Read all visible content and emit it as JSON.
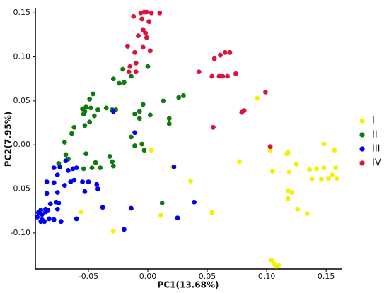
{
  "chart_data": {
    "type": "scatter",
    "xlabel": "PC1(13.68%)",
    "ylabel": "PC2(7.95%)",
    "xlim": [
      -0.0946,
      0.163
    ],
    "ylim": [
      -0.141,
      0.155
    ],
    "xticks": [
      -0.05,
      {
        "value": 0,
        "label": "0.00"
      },
      0.05,
      {
        "value": 0.1,
        "label": "0.10"
      },
      0.15
    ],
    "yticks": [
      {
        "value": -0.1,
        "label": "-0.10"
      },
      -0.05,
      {
        "value": 0,
        "label": "0.00"
      },
      0.05,
      {
        "value": 0.1,
        "label": "0.10"
      },
      0.15
    ],
    "legend": "right",
    "series": [
      {
        "name": "I",
        "color": "#f2f200",
        "x": [
          0.092,
          0.103,
          0.117,
          0.118,
          0.148,
          0.157,
          0.158,
          0.136,
          0.142,
          0.148,
          0.152,
          0.155,
          0.159,
          0.146,
          0.138,
          0.105,
          0.119,
          0.118,
          0.121,
          0.118,
          0.126,
          0.134,
          0.104,
          0.106,
          0.108,
          0.11,
          0.036,
          0.077,
          0.021,
          0.054,
          0.011,
          -0.029,
          -0.056,
          0.003,
          0.125
        ],
        "y": [
          0.053,
          -0.006,
          -0.01,
          -0.009,
          0.001,
          -0.006,
          -0.026,
          -0.028,
          -0.027,
          -0.026,
          -0.038,
          -0.034,
          -0.038,
          -0.039,
          -0.039,
          -0.03,
          -0.031,
          -0.052,
          -0.054,
          -0.061,
          -0.073,
          -0.078,
          -0.131,
          -0.135,
          -0.138,
          -0.137,
          -0.041,
          -0.019,
          -0.025,
          -0.077,
          -0.08,
          -0.098,
          -0.076,
          -0.006,
          -0.022
        ]
      },
      {
        "name": "II",
        "color": "#0f7a0f",
        "x": [
          -0.014,
          -0.021,
          -0.029,
          -0.024,
          -0.02,
          0.0,
          0.026,
          0.03,
          0.013,
          -0.046,
          -0.049,
          -0.052,
          -0.055,
          -0.053,
          -0.054,
          -0.048,
          -0.042,
          -0.035,
          -0.03,
          -0.045,
          -0.049,
          -0.053,
          -0.062,
          -0.064,
          -0.07,
          -0.069,
          -0.067,
          -0.075,
          -0.052,
          -0.044,
          -0.04,
          -0.054,
          -0.047,
          -0.032,
          -0.03,
          -0.029,
          -0.007,
          -0.011,
          -0.007,
          0.002,
          -0.004,
          -0.014,
          -0.011,
          -0.005,
          -0.003,
          0.018,
          0.018,
          0.012,
          -0.027
        ],
        "y": [
          0.078,
          0.086,
          0.075,
          0.07,
          0.071,
          0.089,
          0.054,
          0.056,
          0.05,
          0.058,
          0.052,
          0.043,
          0.041,
          0.038,
          0.035,
          0.042,
          0.04,
          0.042,
          0.04,
          0.033,
          0.026,
          0.022,
          0.02,
          0.013,
          0.003,
          -0.011,
          -0.016,
          -0.021,
          -0.01,
          -0.02,
          -0.026,
          -0.027,
          -0.026,
          -0.013,
          -0.019,
          -0.024,
          0.03,
          0.035,
          0.038,
          0.034,
          0.046,
          0.009,
          -0.001,
          0.001,
          -0.006,
          0.03,
          0.024,
          -0.066,
          0.04
        ]
      },
      {
        "name": "III",
        "color": "#0000f0",
        "x": [
          -0.011,
          -0.029,
          0.022,
          0.039,
          0.025,
          -0.02,
          -0.014,
          -0.038,
          -0.042,
          -0.043,
          -0.053,
          -0.05,
          -0.055,
          -0.062,
          -0.065,
          -0.07,
          -0.063,
          -0.06,
          -0.067,
          -0.069,
          -0.074,
          -0.079,
          -0.076,
          -0.079,
          -0.076,
          -0.085,
          -0.085,
          -0.082,
          -0.077,
          -0.076,
          -0.079,
          -0.083,
          -0.09,
          -0.092,
          -0.089,
          -0.086,
          -0.084,
          -0.09,
          -0.087,
          -0.093,
          -0.089,
          -0.086,
          -0.06,
          -0.073,
          -0.075
        ],
        "y": [
          0.014,
          0.038,
          -0.025,
          -0.065,
          -0.083,
          -0.096,
          -0.072,
          -0.071,
          -0.05,
          -0.045,
          -0.053,
          -0.042,
          -0.042,
          -0.04,
          -0.042,
          -0.046,
          -0.027,
          -0.026,
          -0.029,
          -0.018,
          -0.025,
          -0.026,
          -0.034,
          -0.043,
          -0.054,
          -0.042,
          -0.055,
          -0.067,
          -0.065,
          -0.073,
          -0.085,
          -0.084,
          -0.074,
          -0.077,
          -0.079,
          -0.076,
          -0.074,
          -0.087,
          -0.087,
          -0.082,
          -0.085,
          -0.073,
          -0.084,
          -0.087,
          -0.066
        ]
      },
      {
        "name": "IV",
        "color": "#dc143c",
        "x": [
          -0.012,
          -0.006,
          -0.003,
          -0.001,
          0.003,
          0.01,
          -0.005,
          0.001,
          -0.004,
          -0.002,
          -0.008,
          -0.001,
          -0.004,
          0.002,
          -0.017,
          -0.011,
          -0.01,
          -0.015,
          -0.016,
          -0.01,
          0.056,
          0.061,
          0.065,
          0.069,
          0.043,
          0.054,
          0.06,
          0.063,
          0.067,
          0.074,
          0.079,
          0.081,
          0.099,
          0.055,
          0.103
        ],
        "y": [
          0.146,
          0.15,
          0.151,
          0.151,
          0.15,
          0.15,
          0.143,
          0.14,
          0.131,
          0.127,
          0.124,
          0.122,
          0.111,
          0.107,
          0.112,
          0.105,
          0.093,
          0.089,
          0.083,
          0.083,
          0.098,
          0.102,
          0.105,
          0.105,
          0.083,
          0.078,
          0.078,
          0.078,
          0.078,
          0.081,
          0.037,
          0.039,
          0.06,
          0.02,
          -0.002
        ]
      }
    ]
  }
}
